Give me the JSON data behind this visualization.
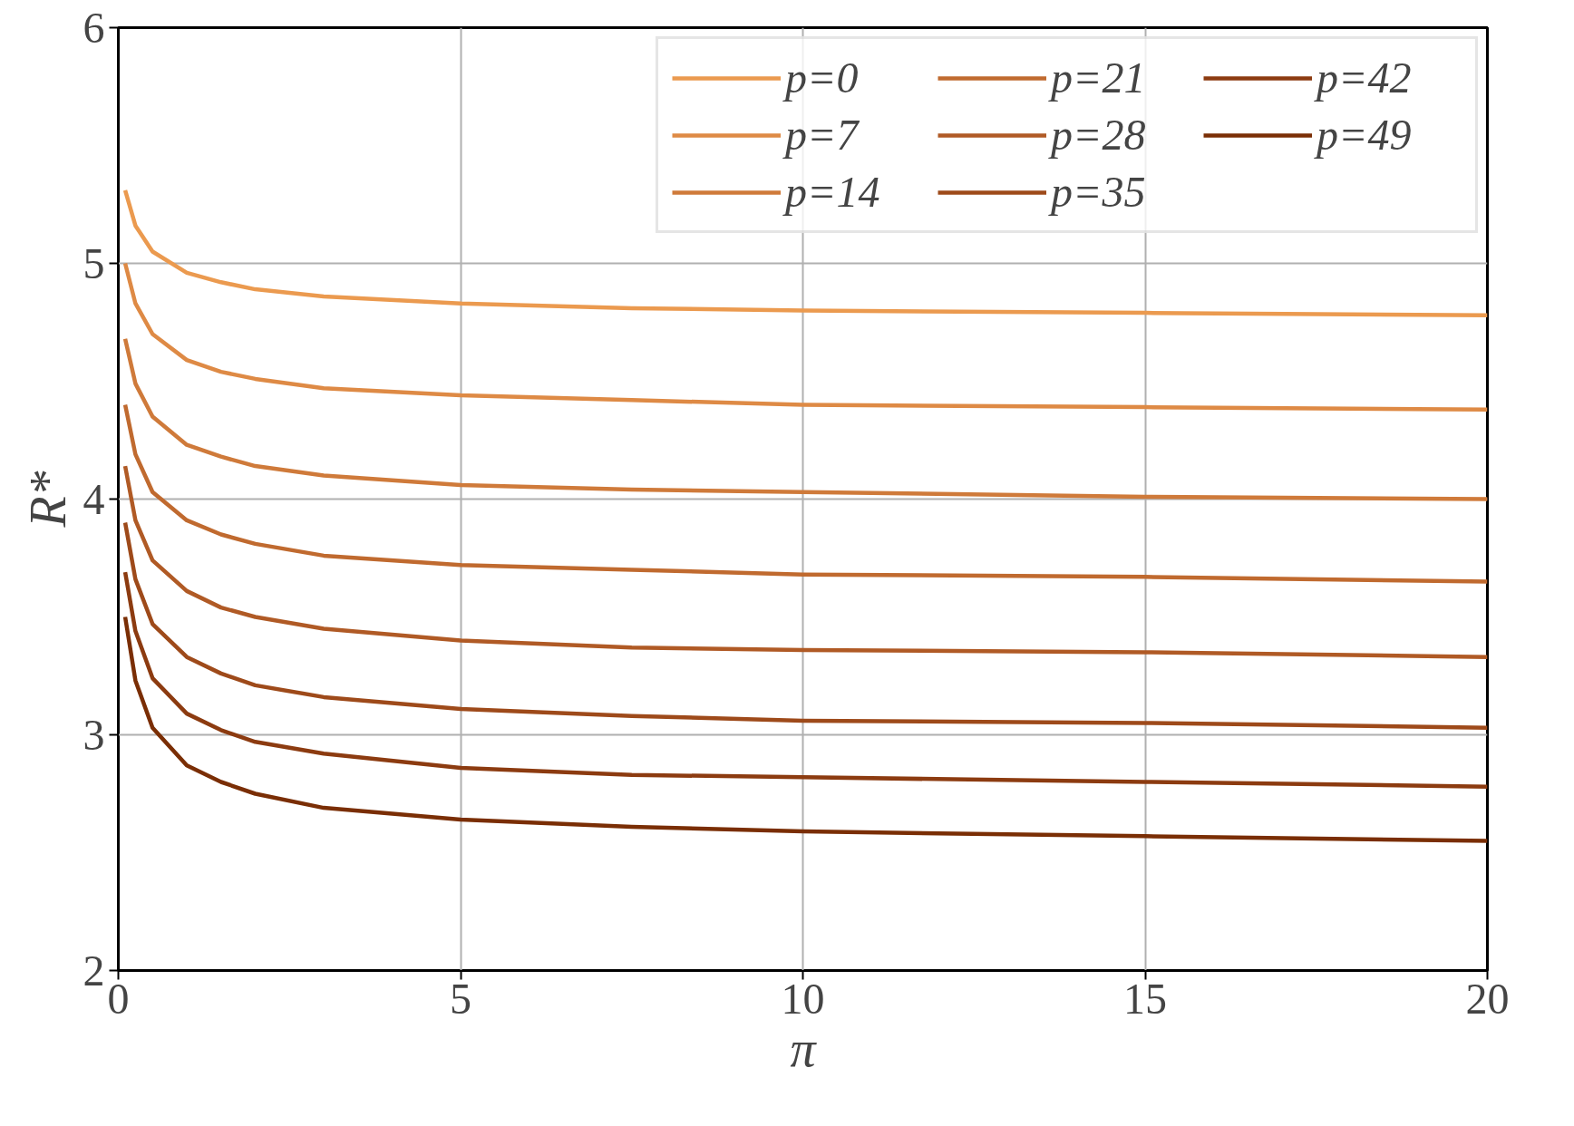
{
  "chart_data": {
    "type": "line",
    "xlabel": "π",
    "ylabel": "R*",
    "x": [
      0.1,
      0.25,
      0.5,
      1,
      1.5,
      2,
      3,
      5,
      7.5,
      10,
      15,
      20
    ],
    "xlim": [
      0,
      20
    ],
    "xticks": [
      0,
      5,
      10,
      15,
      20
    ],
    "ylim": [
      2,
      6
    ],
    "yticks": [
      2,
      3,
      4,
      5,
      6
    ],
    "grid": true,
    "legend": "top right",
    "line_style": "solid",
    "series": [
      {
        "name": "p=0",
        "color": "#eb9a4f",
        "values": [
          5.31,
          5.16,
          5.05,
          4.96,
          4.92,
          4.89,
          4.86,
          4.83,
          4.81,
          4.8,
          4.79,
          4.78
        ]
      },
      {
        "name": "p=7",
        "color": "#de8a45",
        "values": [
          5.0,
          4.83,
          4.7,
          4.59,
          4.54,
          4.51,
          4.47,
          4.44,
          4.42,
          4.4,
          4.39,
          4.38
        ]
      },
      {
        "name": "p=14",
        "color": "#cf7a3a",
        "values": [
          4.68,
          4.49,
          4.35,
          4.23,
          4.18,
          4.14,
          4.1,
          4.06,
          4.04,
          4.03,
          4.01,
          4.0
        ]
      },
      {
        "name": "p=21",
        "color": "#c06a2f",
        "values": [
          4.4,
          4.19,
          4.03,
          3.91,
          3.85,
          3.81,
          3.76,
          3.72,
          3.7,
          3.68,
          3.67,
          3.65
        ]
      },
      {
        "name": "p=28",
        "color": "#b05a25",
        "values": [
          4.14,
          3.91,
          3.74,
          3.61,
          3.54,
          3.5,
          3.45,
          3.4,
          3.37,
          3.36,
          3.35,
          3.33
        ]
      },
      {
        "name": "p=35",
        "color": "#9e4a1a",
        "values": [
          3.9,
          3.66,
          3.47,
          3.33,
          3.26,
          3.21,
          3.16,
          3.11,
          3.08,
          3.06,
          3.05,
          3.03
        ]
      },
      {
        "name": "p=42",
        "color": "#8c3b10",
        "values": [
          3.69,
          3.44,
          3.24,
          3.09,
          3.02,
          2.97,
          2.92,
          2.86,
          2.83,
          2.82,
          2.8,
          2.78
        ]
      },
      {
        "name": "p=49",
        "color": "#7a2e05",
        "values": [
          3.5,
          3.23,
          3.03,
          2.87,
          2.8,
          2.75,
          2.69,
          2.64,
          2.61,
          2.59,
          2.57,
          2.55
        ]
      }
    ]
  }
}
